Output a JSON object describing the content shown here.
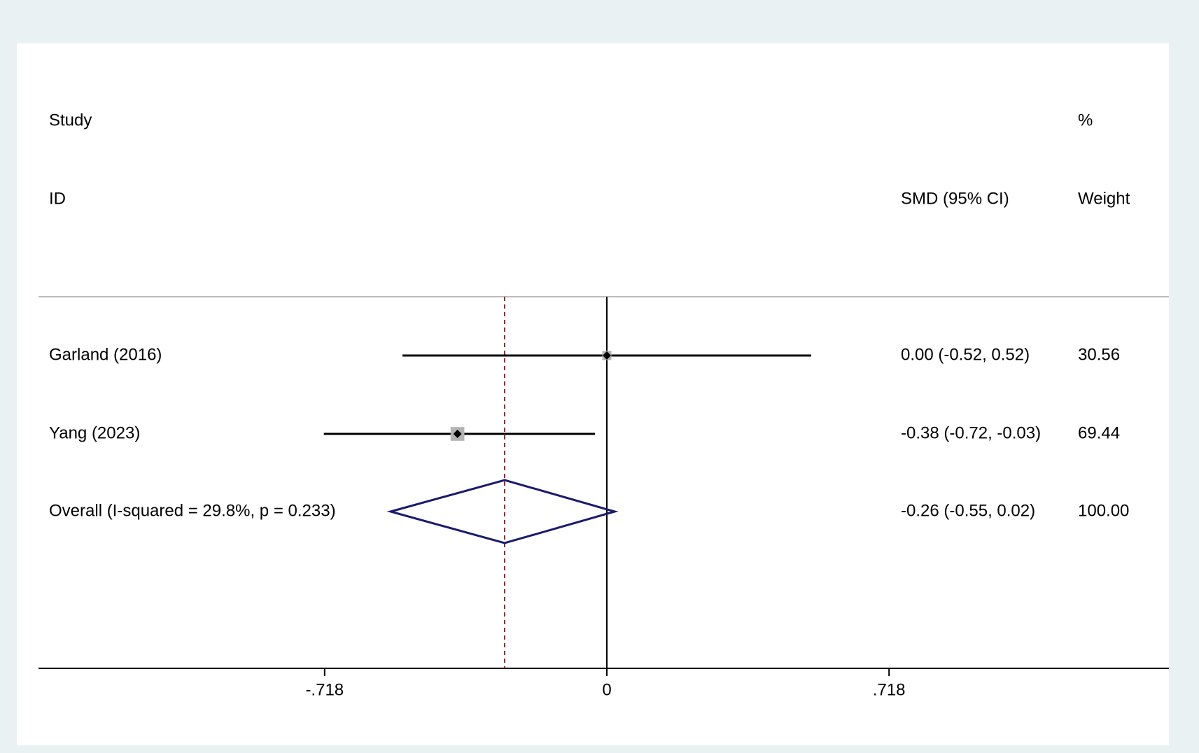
{
  "chart_data": {
    "type": "forest",
    "study_header": [
      "Study",
      "ID"
    ],
    "estimate_header": "SMD (95% CI)",
    "weight_header": [
      "%",
      "Weight"
    ],
    "categories": [
      "Garland (2016)",
      "Yang (2023)",
      "Overall  (I-squared = 29.8%, p = 0.233)"
    ],
    "values": [
      0.0,
      -0.38,
      -0.26
    ],
    "lower": [
      -0.52,
      -0.72,
      -0.55
    ],
    "upper": [
      0.52,
      -0.03,
      0.02
    ],
    "value_labels": [
      "0.00 (-0.52, 0.52)",
      "-0.38 (-0.72, -0.03)",
      "-0.26 (-0.55, 0.02)"
    ],
    "weights": [
      30.56,
      69.44,
      100
    ],
    "weight_labels": [
      "30.56",
      "69.44",
      "100.00"
    ],
    "xlim": [
      -1.446,
      1.43
    ],
    "xticks": [
      {
        "value": -0.718,
        "label": "-.718"
      },
      0,
      {
        "value": 0.718,
        "label": ".718"
      }
    ],
    "box_color": "#b3b3b3",
    "diamond_color": "#1a1a6e",
    "overall_line_color": "#9b2a2a"
  }
}
